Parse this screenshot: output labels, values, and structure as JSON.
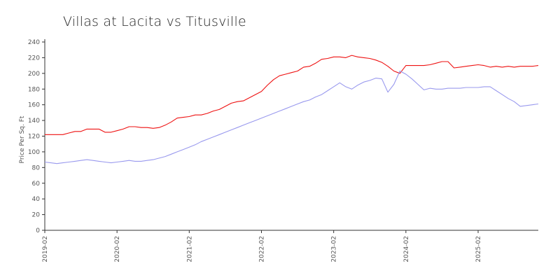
{
  "chart_data": {
    "type": "line",
    "title": "Villas at Lacita vs Titusville",
    "xlabel": "",
    "ylabel": "Price Per Sq. Ft",
    "ylim": [
      0,
      240
    ],
    "yticks": [
      0,
      20,
      40,
      60,
      80,
      100,
      120,
      140,
      160,
      180,
      200,
      220,
      240
    ],
    "xticks": [
      "2019-02",
      "2020-02",
      "2021-02",
      "2022-02",
      "2023-02",
      "2024-02",
      "2025-02"
    ],
    "x_start": "2019-02",
    "grid": false,
    "legend": "none",
    "series": [
      {
        "color": "#ee1111",
        "values": [
          122,
          122,
          122,
          122,
          124,
          126,
          126,
          129,
          129,
          129,
          125,
          125,
          127,
          129,
          132,
          132,
          131,
          131,
          130,
          131,
          134,
          138,
          143,
          144,
          145,
          147,
          147,
          149,
          152,
          154,
          158,
          162,
          164,
          165,
          169,
          173,
          177,
          185,
          192,
          197,
          199,
          201,
          203,
          208,
          209,
          213,
          218,
          219,
          221,
          221,
          220,
          223,
          221,
          220,
          219,
          217,
          214,
          209,
          203,
          200,
          210,
          210,
          210,
          210,
          211,
          213,
          215,
          215,
          207,
          208,
          209,
          210,
          211,
          210,
          208,
          209,
          208,
          209,
          208,
          209,
          209,
          209,
          210
        ]
      },
      {
        "color": "#9999ee",
        "values": [
          87,
          86,
          85,
          86,
          87,
          88,
          89,
          90,
          89,
          88,
          87,
          86,
          87,
          88,
          89,
          88,
          88,
          89,
          90,
          92,
          94,
          97,
          100,
          103,
          106,
          109,
          113,
          116,
          119,
          122,
          125,
          128,
          131,
          134,
          137,
          140,
          143,
          146,
          149,
          152,
          155,
          158,
          161,
          164,
          166,
          170,
          173,
          178,
          183,
          188,
          183,
          180,
          185,
          189,
          191,
          194,
          193,
          176,
          186,
          203,
          199,
          193,
          186,
          179,
          181,
          180,
          180,
          181,
          181,
          181,
          182,
          182,
          182,
          183,
          183,
          178,
          173,
          168,
          164,
          158,
          159,
          160,
          161
        ]
      }
    ]
  }
}
